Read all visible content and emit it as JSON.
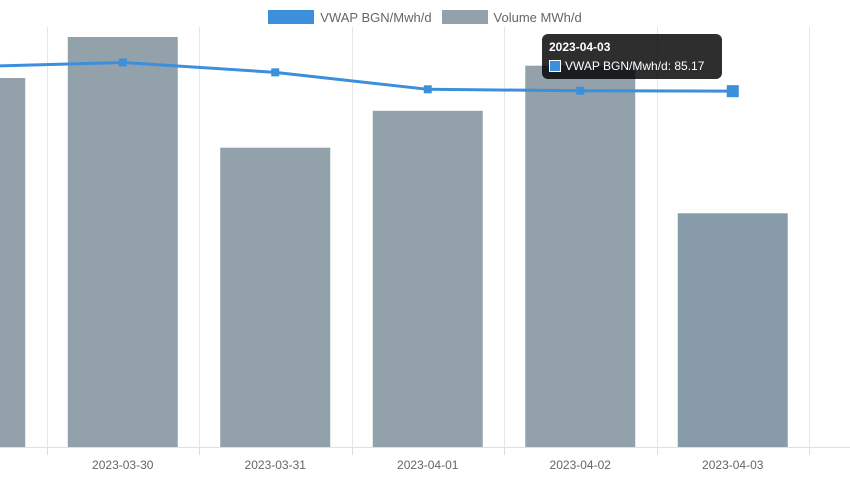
{
  "legend": [
    {
      "label": "VWAP BGN/Mwh/d",
      "color": "#3b8fdb"
    },
    {
      "label": "Volume MWh/d",
      "color": "#93a1ab"
    }
  ],
  "chart_data": {
    "type": "bar",
    "categories": [
      "2023-03-30",
      "2023-03-31",
      "2023-04-01",
      "2023-04-02",
      "2023-04-03"
    ],
    "clipped_left_category": "0",
    "series": [
      {
        "name": "Volume MWh/d",
        "type": "bar",
        "clipped_left_value": 0.9,
        "values": [
          1.0,
          0.73,
          0.82,
          0.93,
          0.57
        ]
      },
      {
        "name": "VWAP BGN/Mwh/d",
        "type": "line",
        "clipped_left_value": 86.9,
        "values": [
          87.2,
          86.5,
          85.3,
          85.2,
          85.17
        ]
      }
    ],
    "volume_axis": {
      "min": 0,
      "max": 1.0
    },
    "vwap_axis": {
      "min": 60,
      "max": 89
    },
    "grid": true,
    "legend_position": "top-center"
  },
  "tooltip": {
    "title": "2023-04-03",
    "label": "VWAP BGN/Mwh/d: 85.17",
    "color": "#3b8fdb"
  }
}
